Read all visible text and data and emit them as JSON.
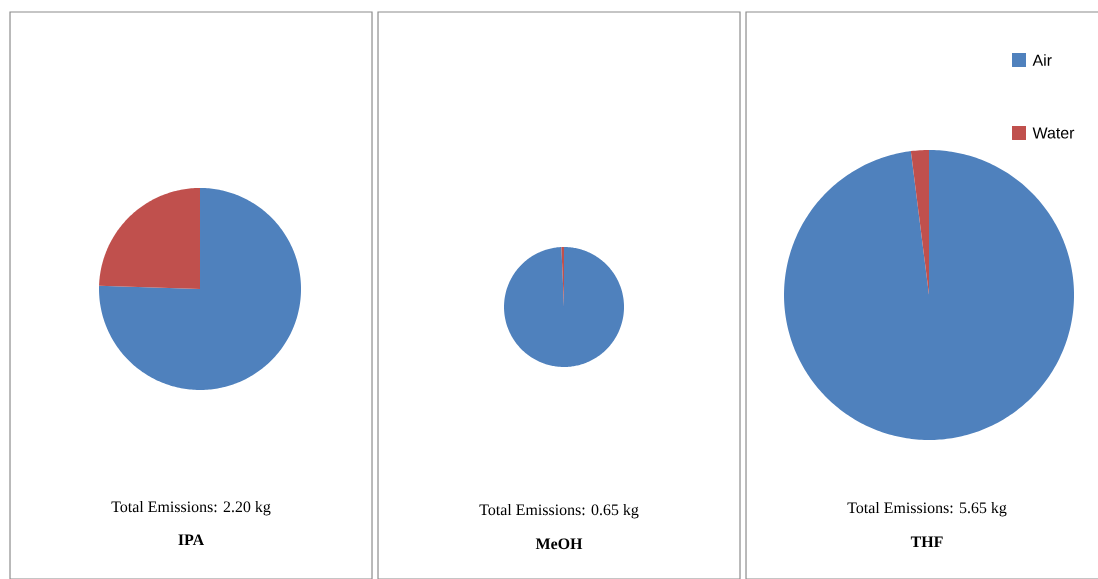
{
  "chart_data": [
    {
      "type": "pie",
      "title": "IPA",
      "annotations": [
        "Total Emissions:  2.20 kg"
      ],
      "categories": [
        null,
        null
      ],
      "values": [
        75.5,
        24.5
      ],
      "colors": [
        "#4f81bd",
        "#c0504d"
      ],
      "legend": false
    },
    {
      "type": "pie",
      "title": "MeOH",
      "annotations": [
        "Total Emissions:  0.65 kg"
      ],
      "categories": [
        null,
        null
      ],
      "values": [
        99.3,
        0.7
      ],
      "colors": [
        "#4f81bd",
        "#c0504d"
      ],
      "legend": false
    },
    {
      "type": "pie",
      "title": "THF",
      "annotations": [
        "Total Emissions:  5.65 kg"
      ],
      "categories": [
        "Air",
        "Water"
      ],
      "values": [
        98,
        2
      ],
      "colors": [
        "#4f81bd",
        "#c0504d"
      ],
      "legend": "top right"
    }
  ]
}
